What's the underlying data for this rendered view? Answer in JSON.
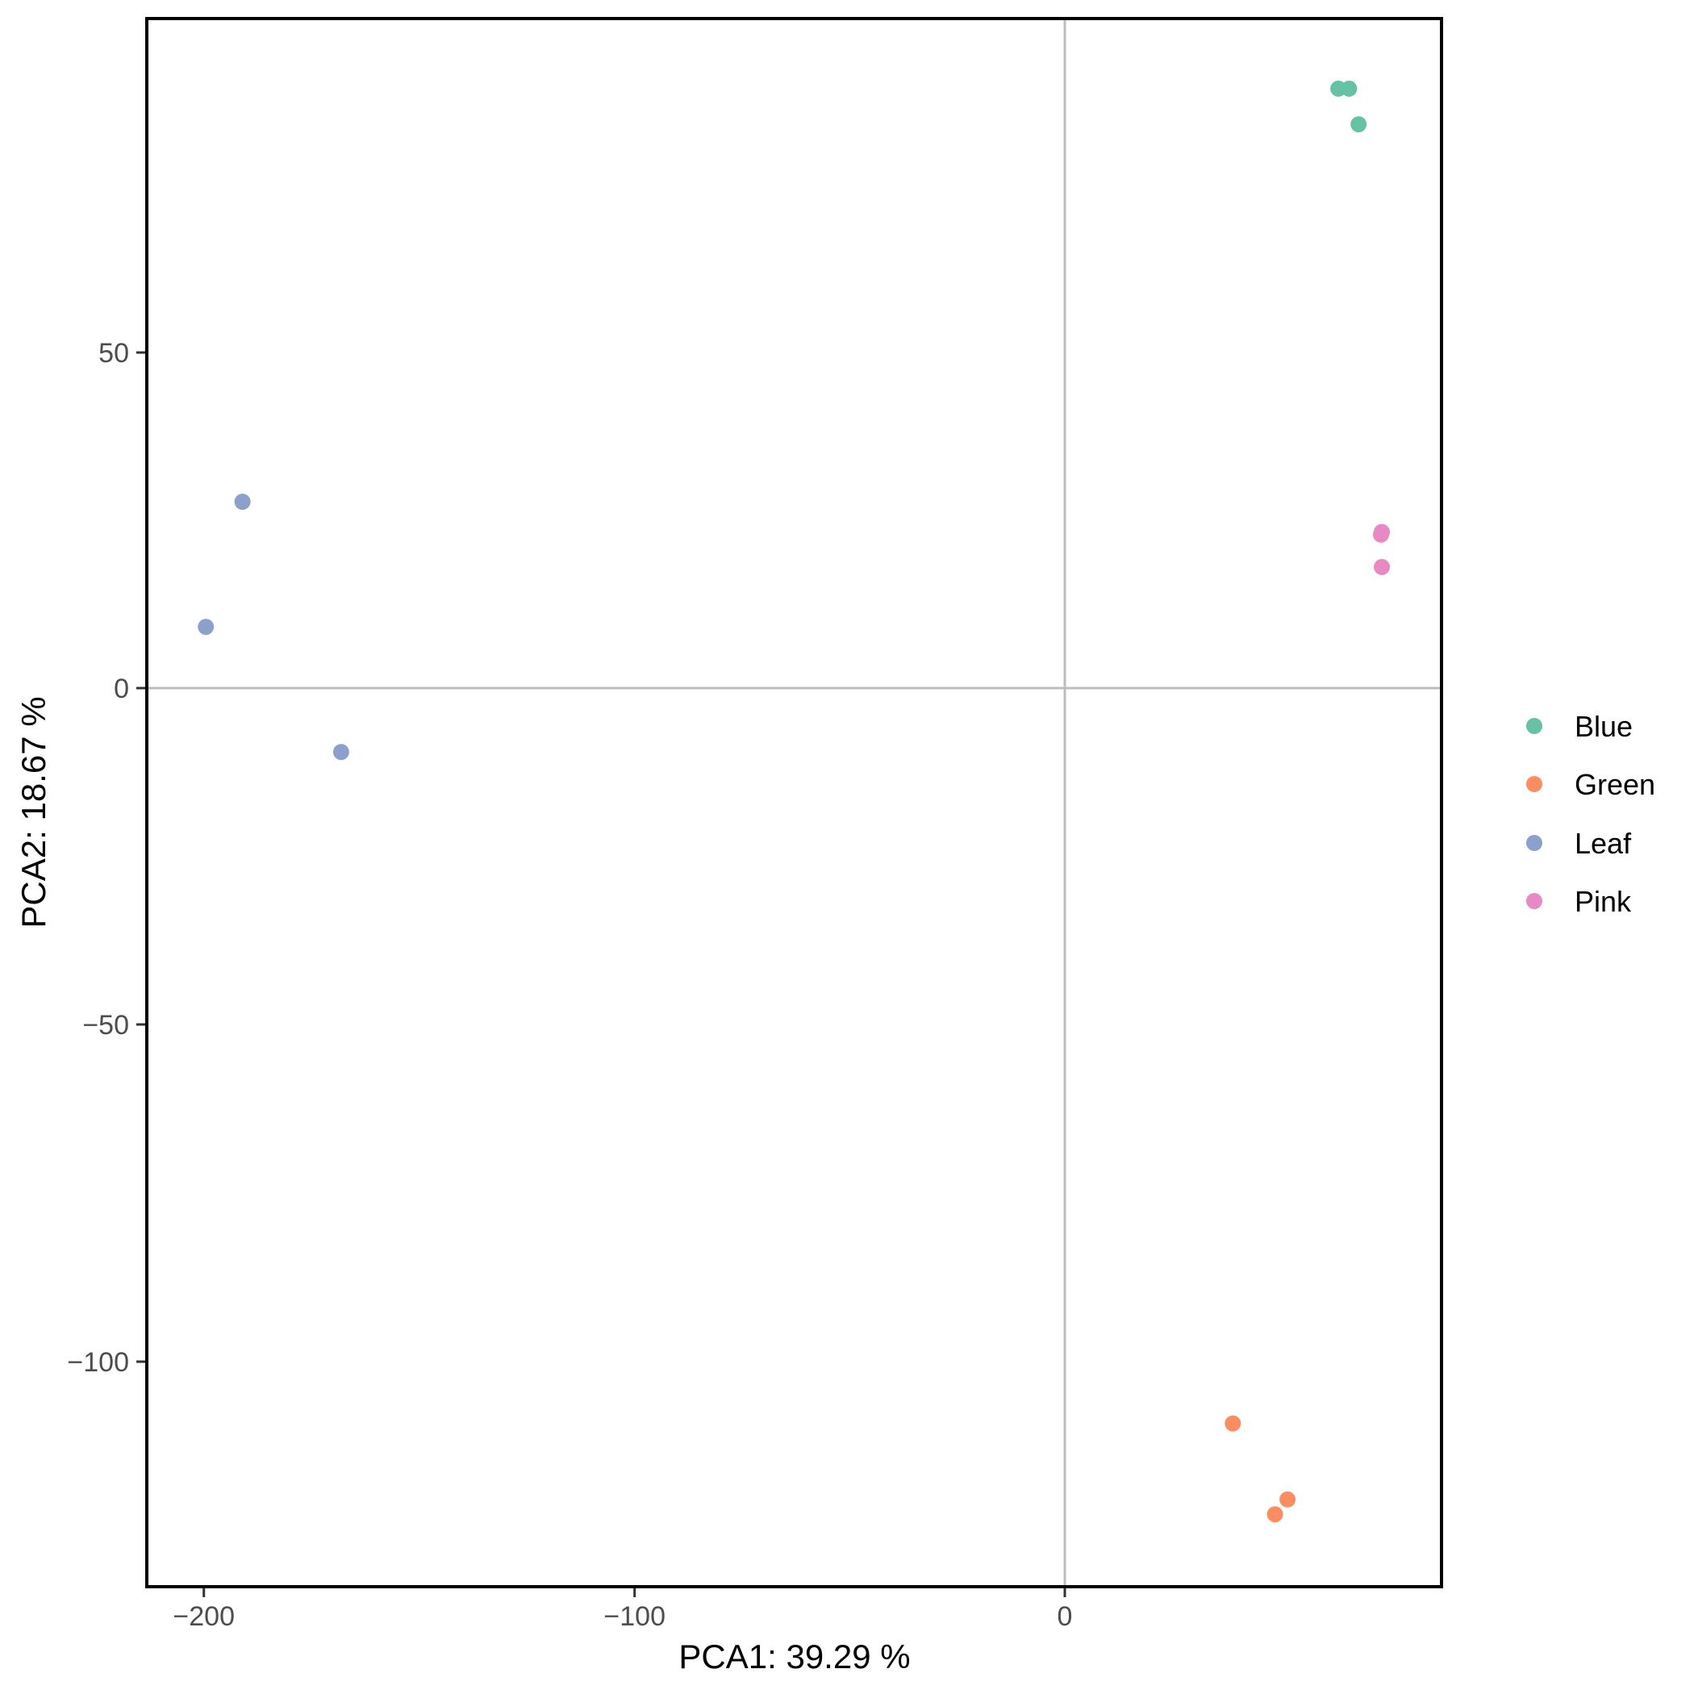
{
  "chart_data": {
    "type": "scatter",
    "title": "",
    "xlabel": "PCA1:  39.29 %",
    "ylabel": "PCA2:  18.67 %",
    "xlim": [
      -213,
      87.5
    ],
    "ylim": [
      -133.5,
      99.6
    ],
    "x_ticks": [
      -200,
      -100,
      0
    ],
    "x_tick_labels": [
      "−200",
      "−100",
      "0"
    ],
    "y_ticks": [
      50,
      0,
      -50,
      -100
    ],
    "y_tick_labels": [
      "50",
      "0",
      "−50",
      "−100"
    ],
    "grid": false,
    "reference_lines": {
      "x": 0,
      "y": 0
    },
    "legend_position": "right",
    "series": [
      {
        "name": "Blue",
        "color": "#66C2A5",
        "points": [
          [
            63.5,
            89.1
          ],
          [
            66.0,
            89.1
          ],
          [
            68.2,
            83.8
          ]
        ]
      },
      {
        "name": "Green",
        "color": "#FC8D62",
        "points": [
          [
            39.0,
            -109.3
          ],
          [
            51.7,
            -120.6
          ],
          [
            48.8,
            -122.8
          ]
        ]
      },
      {
        "name": "Leaf",
        "color": "#8DA0CB",
        "points": [
          [
            -190.9,
            27.7
          ],
          [
            -199.4,
            9.1
          ],
          [
            -168.0,
            -9.5
          ]
        ]
      },
      {
        "name": "Pink",
        "color": "#E78AC3",
        "points": [
          [
            73.6,
            23.2
          ],
          [
            73.4,
            22.8
          ],
          [
            73.6,
            18.0
          ]
        ]
      }
    ]
  },
  "legend": {
    "items": [
      {
        "label": "Blue",
        "color": "#66C2A5"
      },
      {
        "label": "Green",
        "color": "#FC8D62"
      },
      {
        "label": "Leaf",
        "color": "#8DA0CB"
      },
      {
        "label": "Pink",
        "color": "#E78AC3"
      }
    ]
  },
  "axes": {
    "x_title": "PCA1:  39.29 %",
    "y_title": "PCA2:  18.67 %",
    "x_ticks": [
      "−200",
      "−100",
      "0"
    ],
    "y_ticks": [
      "50",
      "0",
      "−50",
      "−100"
    ]
  }
}
